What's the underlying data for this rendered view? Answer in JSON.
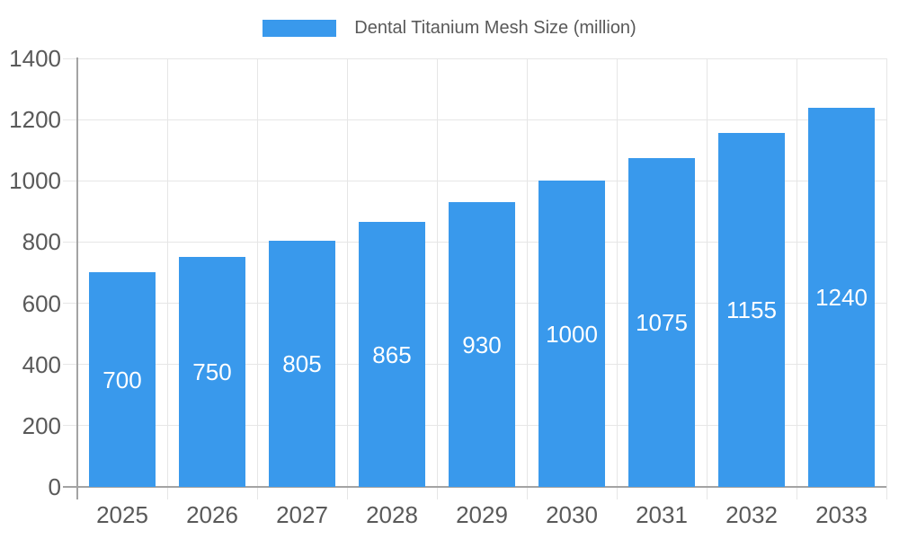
{
  "legend": {
    "label": "Dental Titanium Mesh Size (million)"
  },
  "chart_data": {
    "type": "bar",
    "title": "Dental Titanium Mesh Size (million)",
    "categories": [
      "2025",
      "2026",
      "2027",
      "2028",
      "2029",
      "2030",
      "2031",
      "2032",
      "2033"
    ],
    "values": [
      700,
      750,
      805,
      865,
      930,
      1000,
      1075,
      1155,
      1240
    ],
    "series": [
      {
        "name": "Dental Titanium Mesh Size (million)",
        "values": [
          700,
          750,
          805,
          865,
          930,
          1000,
          1075,
          1155,
          1240
        ]
      }
    ],
    "xlabel": "",
    "ylabel": "",
    "ylim": [
      0,
      1400
    ],
    "ytick_step": 200,
    "yticks": [
      "0",
      "200",
      "400",
      "600",
      "800",
      "1000",
      "1200",
      "1400"
    ],
    "grid": true,
    "legend_position": "top-center",
    "bar_labels_visible": true,
    "colors": {
      "bar": "#3999EC",
      "bar_label_text": "#ffffff",
      "axis_text": "#595959",
      "axis_line": "#a3a3a3",
      "gridline": "#e6e6e6",
      "background": "#ffffff"
    }
  }
}
